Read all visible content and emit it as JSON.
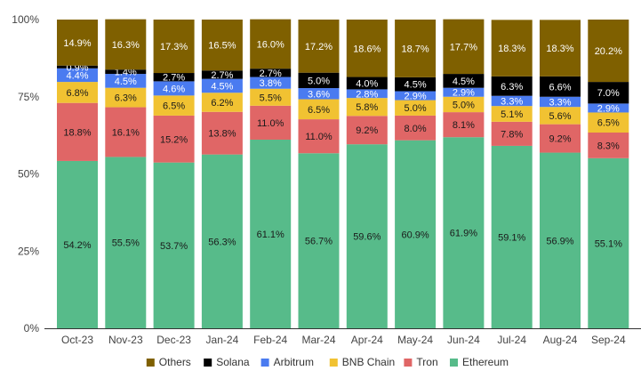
{
  "chart_data": {
    "type": "bar",
    "stacked": true,
    "normalized": true,
    "title": "",
    "xlabel": "",
    "ylabel": "",
    "ylim": [
      0,
      100
    ],
    "y_ticks": [
      "0%",
      "25%",
      "50%",
      "75%",
      "100%"
    ],
    "grid": false,
    "legend_position": "bottom",
    "categories": [
      "Oct-23",
      "Nov-23",
      "Dec-23",
      "Jan-24",
      "Feb-24",
      "Mar-24",
      "Apr-24",
      "May-24",
      "Jun-24",
      "Jul-24",
      "Aug-24",
      "Sep-24"
    ],
    "series": [
      {
        "name": "Ethereum",
        "color": "#57bb8a",
        "values": [
          54.2,
          55.5,
          53.7,
          56.3,
          61.1,
          56.7,
          59.6,
          60.9,
          61.9,
          59.1,
          56.9,
          55.1
        ],
        "labels": [
          "54.2%",
          "55.5%",
          "53.7%",
          "56.3%",
          "61.1%",
          "56.7%",
          "59.6%",
          "60.9%",
          "61.9%",
          "59.1%",
          "56.9%",
          "55.1%"
        ]
      },
      {
        "name": "Tron",
        "color": "#e06666",
        "values": [
          18.8,
          16.1,
          15.2,
          13.8,
          11.0,
          11.0,
          9.2,
          8.0,
          8.1,
          7.8,
          9.2,
          8.3
        ],
        "labels": [
          "18.8%",
          "16.1%",
          "15.2%",
          "13.8%",
          "11.0%",
          "11.0%",
          "9.2%",
          "8.0%",
          "8.1%",
          "7.8%",
          "9.2%",
          "8.3%"
        ]
      },
      {
        "name": "BNB Chain",
        "color": "#f1c232",
        "values": [
          6.8,
          6.3,
          6.5,
          6.2,
          5.5,
          6.5,
          5.8,
          5.0,
          5.0,
          5.1,
          5.6,
          6.5
        ],
        "labels": [
          "6.8%",
          "6.3%",
          "6.5%",
          "6.2%",
          "5.5%",
          "6.5%",
          "5.8%",
          "5.0%",
          "5.0%",
          "5.1%",
          "5.6%",
          "6.5%"
        ]
      },
      {
        "name": "Arbitrum",
        "color": "#4a7bf0",
        "values": [
          4.4,
          4.5,
          4.6,
          4.5,
          3.8,
          3.6,
          2.8,
          2.9,
          2.9,
          3.3,
          3.3,
          2.9
        ],
        "labels": [
          "4.4%",
          "4.5%",
          "4.6%",
          "4.5%",
          "3.8%",
          "3.6%",
          "2.8%",
          "2.9%",
          "2.9%",
          "3.3%",
          "3.3%",
          "2.9%"
        ]
      },
      {
        "name": "Solana",
        "color": "#000000",
        "values": [
          0.9,
          1.4,
          2.7,
          2.7,
          2.7,
          5.0,
          4.0,
          4.5,
          4.5,
          6.3,
          6.6,
          7.0
        ],
        "labels": [
          "0.9%",
          "1.4%",
          "2.7%",
          "2.7%",
          "2.7%",
          "5.0%",
          "4.0%",
          "4.5%",
          "4.5%",
          "6.3%",
          "6.6%",
          "7.0%"
        ]
      },
      {
        "name": "Others",
        "color": "#7f6000",
        "values": [
          14.9,
          16.3,
          17.3,
          16.5,
          16.0,
          17.2,
          18.6,
          18.7,
          17.7,
          18.3,
          18.3,
          20.2
        ],
        "labels": [
          "14.9%",
          "16.3%",
          "17.3%",
          "16.5%",
          "16.0%",
          "17.2%",
          "18.6%",
          "18.7%",
          "17.7%",
          "18.3%",
          "18.3%",
          "20.2%"
        ]
      }
    ],
    "legend_order": [
      "Others",
      "Solana",
      "Arbitrum",
      "BNB Chain",
      "Tron",
      "Ethereum"
    ]
  }
}
